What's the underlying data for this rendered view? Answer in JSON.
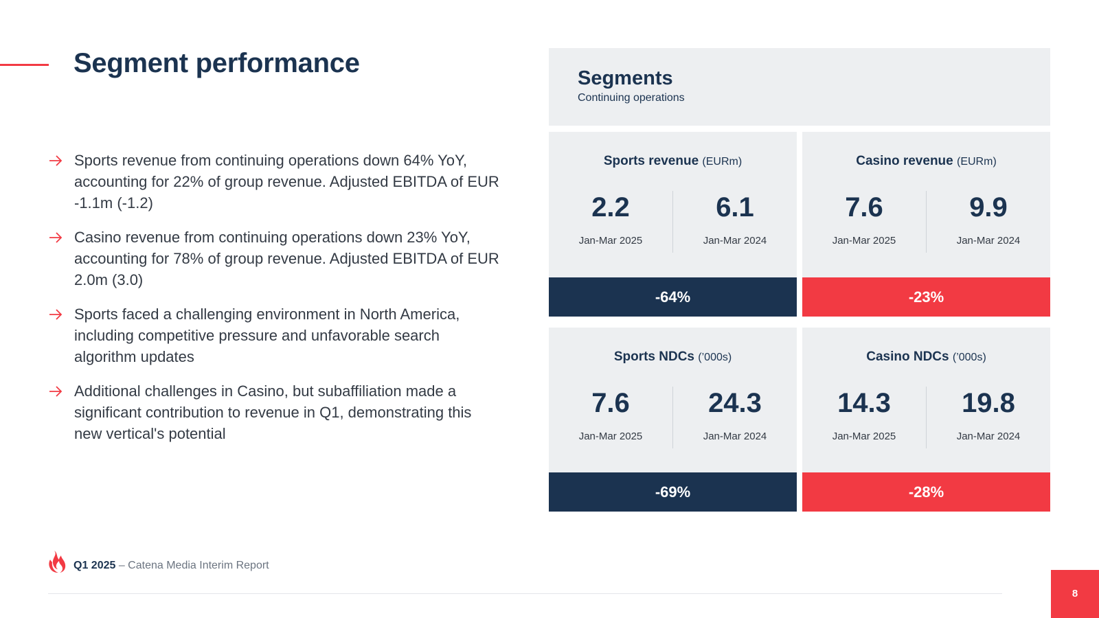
{
  "page": {
    "title": "Segment performance",
    "page_number": "8"
  },
  "bullets": [
    "Sports revenue from continuing operations down 64% YoY, accounting for 22% of group revenue. Adjusted EBITDA of EUR -1.1m (-1.2)",
    "Casino revenue from continuing operations down 23% YoY, accounting for 78% of group revenue. Adjusted EBITDA of EUR 2.0m (3.0)",
    "Sports faced a challenging environment in North America, including competitive pressure and unfavorable search algorithm updates",
    "Additional challenges in Casino, but subaffiliation made a significant contribution to revenue in Q1, demonstrating this new vertical's potential"
  ],
  "segments": {
    "title": "Segments",
    "subtitle": "Continuing operations"
  },
  "cards": [
    {
      "title": "Sports revenue",
      "unit": "(EURm)",
      "current_value": "2.2",
      "current_period": "Jan-Mar 2025",
      "prior_value": "6.1",
      "prior_period": "Jan-Mar 2024",
      "change": "-64%",
      "bar_color": "#1b3350"
    },
    {
      "title": "Casino revenue",
      "unit": "(EURm)",
      "current_value": "7.6",
      "current_period": "Jan-Mar 2025",
      "prior_value": "9.9",
      "prior_period": "Jan-Mar 2024",
      "change": "-23%",
      "bar_color": "#f23a43"
    },
    {
      "title": "Sports NDCs",
      "unit": "(’000s)",
      "current_value": "7.6",
      "current_period": "Jan-Mar 2025",
      "prior_value": "24.3",
      "prior_period": "Jan-Mar 2024",
      "change": "-69%",
      "bar_color": "#1b3350"
    },
    {
      "title": "Casino NDCs",
      "unit": "(’000s)",
      "current_value": "14.3",
      "current_period": "Jan-Mar 2025",
      "prior_value": "19.8",
      "prior_period": "Jan-Mar 2024",
      "change": "-28%",
      "bar_color": "#f23a43"
    }
  ],
  "footer": {
    "quarter": "Q1 2025",
    "report": " – Catena Media Interim Report",
    "logo_icon": "flame-logo-icon"
  },
  "colors": {
    "navy": "#1b3350",
    "red": "#f23a43",
    "panel": "#edeff1"
  }
}
